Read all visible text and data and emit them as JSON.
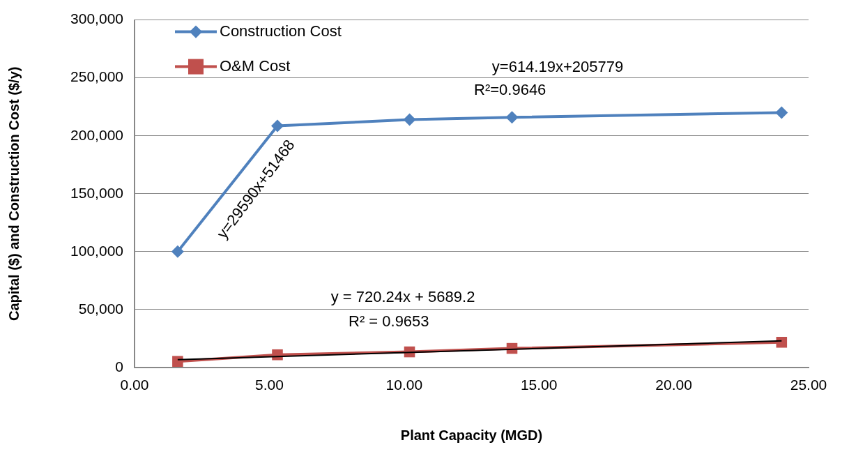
{
  "chart_data": {
    "type": "line",
    "xlabel": "Plant Capacity (MGD)",
    "ylabel": "Capital ($) and Construction Cost ($/y)",
    "x": [
      1.6,
      5.3,
      10.2,
      14.0,
      24.0
    ],
    "series": [
      {
        "name": "Construction Cost",
        "color": "#4f81bd",
        "marker": "diamond",
        "values": [
          100000,
          208500,
          214000,
          216000,
          220000
        ]
      },
      {
        "name": "O&M Cost",
        "color": "#c0504d",
        "marker": "square",
        "values": [
          5300,
          11000,
          13500,
          16500,
          21800
        ]
      },
      {
        "type": "line",
        "color": "#000000",
        "marker": "none",
        "x": [
          1.6,
          24.0
        ],
        "values": [
          6800,
          23000
        ]
      }
    ],
    "xlim": [
      0,
      25
    ],
    "xticks": [
      {
        "value": 0,
        "label": "0.00"
      },
      {
        "value": 5,
        "label": "5.00"
      },
      {
        "value": 10,
        "label": "10.00"
      },
      {
        "value": 15,
        "label": "15.00"
      },
      {
        "value": 20,
        "label": "20.00"
      },
      {
        "value": 25,
        "label": "25.00"
      }
    ],
    "ylim": [
      0,
      300000
    ],
    "yticks": [
      0,
      {
        "value": 50000,
        "label": "50,000"
      },
      {
        "value": 100000,
        "label": "100,000"
      },
      {
        "value": 150000,
        "label": "150,000"
      },
      {
        "value": 200000,
        "label": "200,000"
      },
      {
        "value": 250000,
        "label": "250,000"
      },
      {
        "value": 300000,
        "label": "300,000"
      }
    ],
    "grid": "y",
    "legend": "top left",
    "line_style": "solid",
    "annotations": [
      "y=614.19x+205779",
      "R²=0.9646",
      "y=29590x+51468",
      "y = 720.24x + 5689.2",
      "R² = 0.9653"
    ]
  }
}
